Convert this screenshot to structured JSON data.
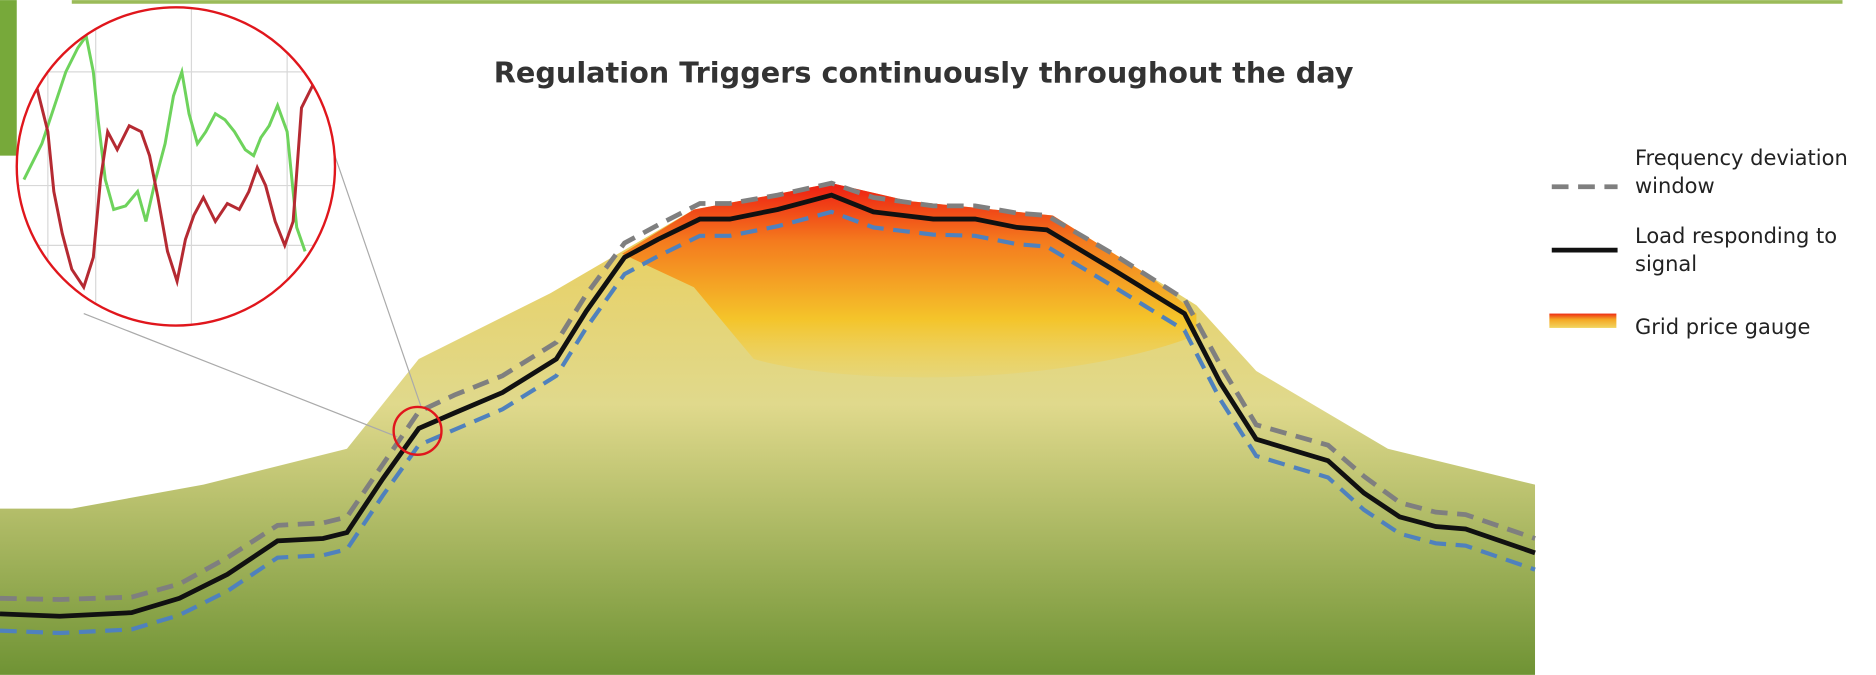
{
  "title": "Regulation Triggers continuously throughout the day",
  "legend": {
    "items": [
      {
        "label": "Frequency deviation window"
      },
      {
        "label": "Load responding to signal"
      },
      {
        "label": "Grid price gauge"
      }
    ]
  }
}
